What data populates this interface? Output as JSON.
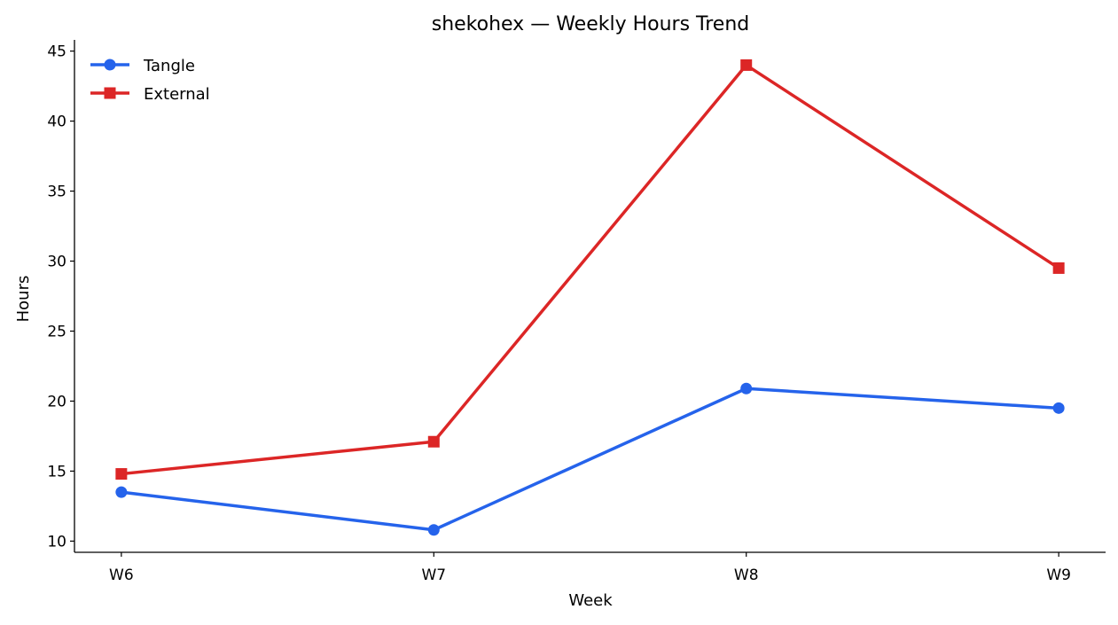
{
  "chart_data": {
    "type": "line",
    "title": "shekohex — Weekly Hours Trend",
    "xlabel": "Week",
    "ylabel": "Hours",
    "categories": [
      "W6",
      "W7",
      "W8",
      "W9"
    ],
    "ylim": [
      9.2,
      45.8
    ],
    "yticks": [
      10,
      15,
      20,
      25,
      30,
      35,
      40,
      45
    ],
    "grid": false,
    "legend_position": "top-left",
    "series": [
      {
        "name": "Tangle",
        "values": [
          13.5,
          10.8,
          20.9,
          19.5
        ],
        "color": "#2563eb",
        "marker": "circle"
      },
      {
        "name": "External",
        "values": [
          14.8,
          17.1,
          44.0,
          29.5
        ],
        "color": "#dc2626",
        "marker": "square"
      }
    ]
  }
}
